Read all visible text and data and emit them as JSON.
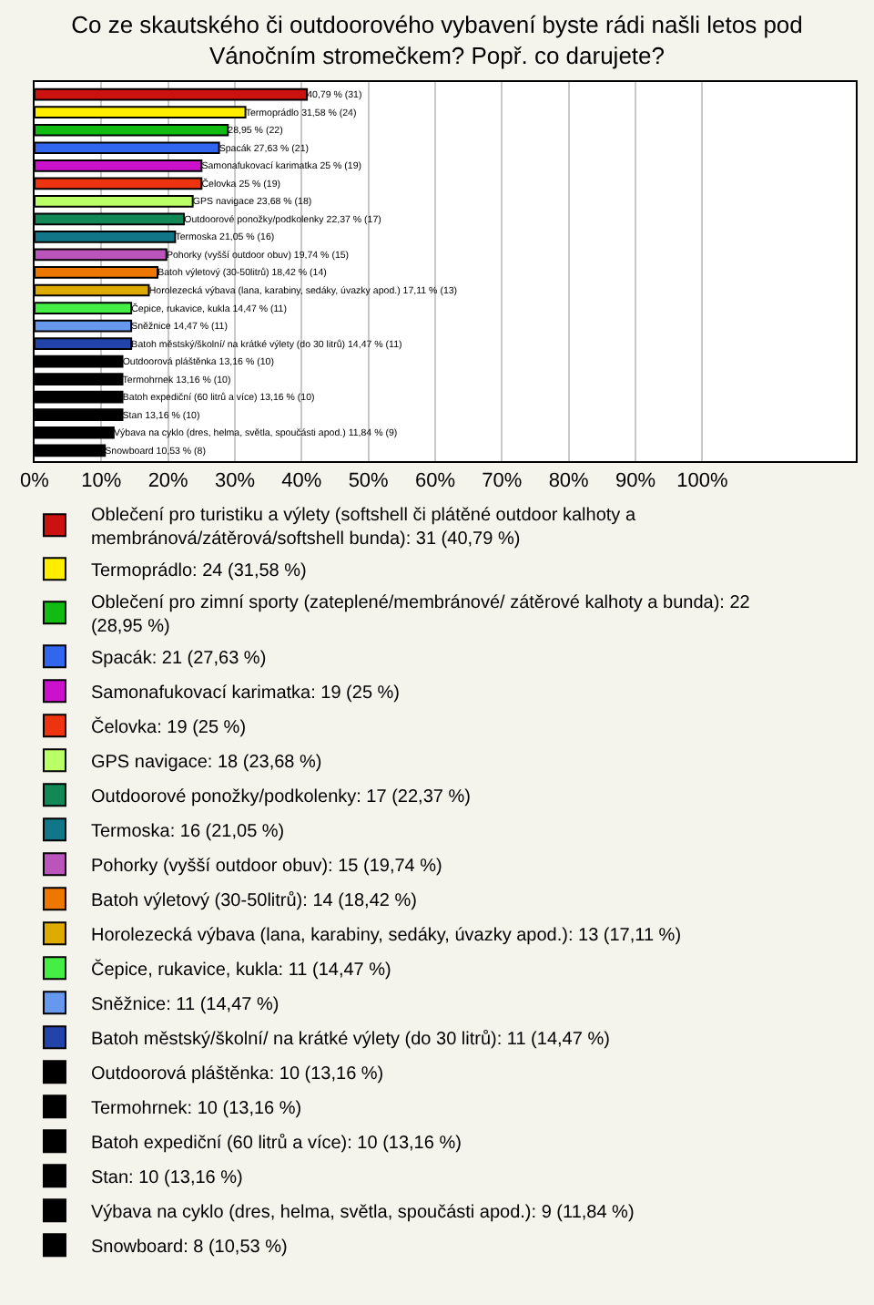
{
  "chart_data": {
    "type": "bar",
    "orientation": "horizontal",
    "stacked": true,
    "title": "Co ze skautského či outdoorového vybavení byste rádi našli letos pod Vánočním stromečkem? Popř. co darujete?",
    "categories": [
      null,
      null,
      null,
      null,
      null,
      null,
      null,
      null,
      null,
      null,
      null,
      null,
      null,
      null,
      null,
      null,
      null,
      null,
      null,
      null,
      null
    ],
    "series": [
      {
        "name": "Oblečení pro turistiku a výlety (softshell či plátěné outdoor kalhoty a membránová/zátěrová/softshell bunda): 31 (40,79 %)",
        "color": "#cc1111",
        "values": [
          40.79,
          null,
          null,
          null,
          null,
          null,
          null,
          null,
          null,
          null,
          null,
          null,
          null,
          null,
          null,
          null,
          null,
          null,
          null,
          null,
          null
        ],
        "value_labels": [
          "40,79 % (31)",
          null,
          null,
          null,
          null,
          null,
          null,
          null,
          null,
          null,
          null,
          null,
          null,
          null,
          null,
          null,
          null,
          null,
          null,
          null,
          null
        ]
      },
      {
        "name": "Termoprádlo: 24 (31,58 %)",
        "color": "#ffee00",
        "values": [
          null,
          31.58,
          null,
          null,
          null,
          null,
          null,
          null,
          null,
          null,
          null,
          null,
          null,
          null,
          null,
          null,
          null,
          null,
          null,
          null,
          null
        ],
        "value_labels": [
          null,
          "Termoprádlo 31,58 % (24)",
          null,
          null,
          null,
          null,
          null,
          null,
          null,
          null,
          null,
          null,
          null,
          null,
          null,
          null,
          null,
          null,
          null,
          null,
          null
        ]
      },
      {
        "name": "Oblečení pro zimní sporty (zateplené/membránové/ zátěrové kalhoty a bunda): 22 (28,95 %)",
        "color": "#11bb11",
        "values": [
          null,
          null,
          28.95,
          null,
          null,
          null,
          null,
          null,
          null,
          null,
          null,
          null,
          null,
          null,
          null,
          null,
          null,
          null,
          null,
          null,
          null
        ],
        "value_labels": [
          null,
          null,
          "28,95 % (22)",
          null,
          null,
          null,
          null,
          null,
          null,
          null,
          null,
          null,
          null,
          null,
          null,
          null,
          null,
          null,
          null,
          null,
          null
        ]
      },
      {
        "name": "Spacák: 21 (27,63 %)",
        "color": "#3366ee",
        "values": [
          null,
          null,
          null,
          27.63,
          null,
          null,
          null,
          null,
          null,
          null,
          null,
          null,
          null,
          null,
          null,
          null,
          null,
          null,
          null,
          null,
          null
        ],
        "value_labels": [
          null,
          null,
          null,
          "Spacák 27,63 % (21)",
          null,
          null,
          null,
          null,
          null,
          null,
          null,
          null,
          null,
          null,
          null,
          null,
          null,
          null,
          null,
          null,
          null
        ]
      },
      {
        "name": "Samonafukovací karimatka: 19 (25 %)",
        "color": "#cc11cc",
        "values": [
          null,
          null,
          null,
          null,
          25,
          null,
          null,
          null,
          null,
          null,
          null,
          null,
          null,
          null,
          null,
          null,
          null,
          null,
          null,
          null,
          null
        ],
        "value_labels": [
          null,
          null,
          null,
          null,
          "Samonafukovací karimatka 25 % (19)",
          null,
          null,
          null,
          null,
          null,
          null,
          null,
          null,
          null,
          null,
          null,
          null,
          null,
          null,
          null,
          null
        ]
      },
      {
        "name": "Čelovka: 19 (25 %)",
        "color": "#ee3311",
        "values": [
          null,
          null,
          null,
          null,
          null,
          25,
          null,
          null,
          null,
          null,
          null,
          null,
          null,
          null,
          null,
          null,
          null,
          null,
          null,
          null,
          null
        ],
        "value_labels": [
          null,
          null,
          null,
          null,
          null,
          "Čelovka 25 % (19)",
          null,
          null,
          null,
          null,
          null,
          null,
          null,
          null,
          null,
          null,
          null,
          null,
          null,
          null,
          null
        ]
      },
      {
        "name": "GPS navigace: 18 (23,68 %)",
        "color": "#bbff66",
        "values": [
          null,
          null,
          null,
          null,
          null,
          null,
          23.68,
          null,
          null,
          null,
          null,
          null,
          null,
          null,
          null,
          null,
          null,
          null,
          null,
          null,
          null
        ],
        "value_labels": [
          null,
          null,
          null,
          null,
          null,
          null,
          "GPS navigace 23,68 % (18)",
          null,
          null,
          null,
          null,
          null,
          null,
          null,
          null,
          null,
          null,
          null,
          null,
          null,
          null
        ]
      },
      {
        "name": "Outdoorové ponožky/podkolenky: 17 (22,37 %)",
        "color": "#118855",
        "values": [
          null,
          null,
          null,
          null,
          null,
          null,
          null,
          22.37,
          null,
          null,
          null,
          null,
          null,
          null,
          null,
          null,
          null,
          null,
          null,
          null,
          null
        ],
        "value_labels": [
          null,
          null,
          null,
          null,
          null,
          null,
          null,
          "Outdoorové ponožky/podkolenky 22,37 % (17)",
          null,
          null,
          null,
          null,
          null,
          null,
          null,
          null,
          null,
          null,
          null,
          null,
          null
        ]
      },
      {
        "name": "Termoska: 16 (21,05 %)",
        "color": "#117788",
        "values": [
          null,
          null,
          null,
          null,
          null,
          null,
          null,
          null,
          21.05,
          null,
          null,
          null,
          null,
          null,
          null,
          null,
          null,
          null,
          null,
          null,
          null
        ],
        "value_labels": [
          null,
          null,
          null,
          null,
          null,
          null,
          null,
          null,
          "Termoska 21,05 % (16)",
          null,
          null,
          null,
          null,
          null,
          null,
          null,
          null,
          null,
          null,
          null,
          null
        ]
      },
      {
        "name": "Pohorky (vyšší outdoor obuv): 15 (19,74 %)",
        "color": "#bb55bb",
        "values": [
          null,
          null,
          null,
          null,
          null,
          null,
          null,
          null,
          null,
          19.74,
          null,
          null,
          null,
          null,
          null,
          null,
          null,
          null,
          null,
          null,
          null
        ],
        "value_labels": [
          null,
          null,
          null,
          null,
          null,
          null,
          null,
          null,
          null,
          "Pohorky (vyšší outdoor obuv) 19,74 % (15)",
          null,
          null,
          null,
          null,
          null,
          null,
          null,
          null,
          null,
          null,
          null
        ]
      },
      {
        "name": "Batoh výletový (30-50litrů): 14 (18,42 %)",
        "color": "#ee7700",
        "values": [
          null,
          null,
          null,
          null,
          null,
          null,
          null,
          null,
          null,
          null,
          18.42,
          null,
          null,
          null,
          null,
          null,
          null,
          null,
          null,
          null,
          null
        ],
        "value_labels": [
          null,
          null,
          null,
          null,
          null,
          null,
          null,
          null,
          null,
          null,
          "Batoh výletový (30-50litrů) 18,42 % (14)",
          null,
          null,
          null,
          null,
          null,
          null,
          null,
          null,
          null,
          null
        ]
      },
      {
        "name": "Horolezecká výbava (lana, karabiny, sedáky, úvazky apod.): 13 (17,11 %)",
        "color": "#ddaa00",
        "values": [
          null,
          null,
          null,
          null,
          null,
          null,
          null,
          null,
          null,
          null,
          null,
          17.11,
          null,
          null,
          null,
          null,
          null,
          null,
          null,
          null,
          null
        ],
        "value_labels": [
          null,
          null,
          null,
          null,
          null,
          null,
          null,
          null,
          null,
          null,
          null,
          "Horolezecká výbava (lana, karabiny, sedáky, úvazky apod.) 17,11 % (13)",
          null,
          null,
          null,
          null,
          null,
          null,
          null,
          null,
          null
        ]
      },
      {
        "name": "Čepice, rukavice, kukla: 11 (14,47 %)",
        "color": "#44ee44",
        "values": [
          null,
          null,
          null,
          null,
          null,
          null,
          null,
          null,
          null,
          null,
          null,
          null,
          14.47,
          null,
          null,
          null,
          null,
          null,
          null,
          null,
          null
        ],
        "value_labels": [
          null,
          null,
          null,
          null,
          null,
          null,
          null,
          null,
          null,
          null,
          null,
          null,
          "Čepice, rukavice, kukla 14,47 % (11)",
          null,
          null,
          null,
          null,
          null,
          null,
          null,
          null
        ]
      },
      {
        "name": "Sněžnice: 11 (14,47 %)",
        "color": "#6699ee",
        "values": [
          null,
          null,
          null,
          null,
          null,
          null,
          null,
          null,
          null,
          null,
          null,
          null,
          null,
          14.47,
          null,
          null,
          null,
          null,
          null,
          null,
          null
        ],
        "value_labels": [
          null,
          null,
          null,
          null,
          null,
          null,
          null,
          null,
          null,
          null,
          null,
          null,
          null,
          "Sněžnice 14,47 % (11)",
          null,
          null,
          null,
          null,
          null,
          null,
          null
        ]
      },
      {
        "name": "Batoh městský/školní/ na krátké výlety (do 30 litrů): 11 (14,47 %)",
        "color": "#2244aa",
        "values": [
          null,
          null,
          null,
          null,
          null,
          null,
          null,
          null,
          null,
          null,
          null,
          null,
          null,
          null,
          14.47,
          null,
          null,
          null,
          null,
          null,
          null
        ],
        "value_labels": [
          null,
          null,
          null,
          null,
          null,
          null,
          null,
          null,
          null,
          null,
          null,
          null,
          null,
          null,
          "Batoh městský/školní/ na krátké výlety (do 30 litrů) 14,47 % (11)",
          null,
          null,
          null,
          null,
          null,
          null
        ]
      },
      {
        "name": "Outdoorová pláštěnka: 10 (13,16 %)",
        "color": "#000000",
        "values": [
          null,
          null,
          null,
          null,
          null,
          null,
          null,
          null,
          null,
          null,
          null,
          null,
          null,
          null,
          null,
          13.16,
          null,
          null,
          null,
          null,
          null
        ],
        "value_labels": [
          null,
          null,
          null,
          null,
          null,
          null,
          null,
          null,
          null,
          null,
          null,
          null,
          null,
          null,
          null,
          "Outdoorová pláštěnka 13,16 % (10)",
          null,
          null,
          null,
          null,
          null
        ]
      },
      {
        "name": "Termohrnek: 10 (13,16 %)",
        "color": "#000000",
        "values": [
          null,
          null,
          null,
          null,
          null,
          null,
          null,
          null,
          null,
          null,
          null,
          null,
          null,
          null,
          null,
          null,
          13.16,
          null,
          null,
          null,
          null
        ],
        "value_labels": [
          null,
          null,
          null,
          null,
          null,
          null,
          null,
          null,
          null,
          null,
          null,
          null,
          null,
          null,
          null,
          null,
          "Termohrnek 13,16 % (10)",
          null,
          null,
          null,
          null
        ]
      },
      {
        "name": "Batoh expediční (60 litrů a více): 10 (13,16 %)",
        "color": "#000000",
        "values": [
          null,
          null,
          null,
          null,
          null,
          null,
          null,
          null,
          null,
          null,
          null,
          null,
          null,
          null,
          null,
          null,
          null,
          13.16,
          null,
          null,
          null
        ],
        "value_labels": [
          null,
          null,
          null,
          null,
          null,
          null,
          null,
          null,
          null,
          null,
          null,
          null,
          null,
          null,
          null,
          null,
          null,
          "Batoh expediční (60 litrů a více) 13,16 % (10)",
          null,
          null,
          null
        ]
      },
      {
        "name": "Stan: 10 (13,16 %)",
        "color": "#000000",
        "values": [
          null,
          null,
          null,
          null,
          null,
          null,
          null,
          null,
          null,
          null,
          null,
          null,
          null,
          null,
          null,
          null,
          null,
          null,
          13.16,
          null,
          null
        ],
        "value_labels": [
          null,
          null,
          null,
          null,
          null,
          null,
          null,
          null,
          null,
          null,
          null,
          null,
          null,
          null,
          null,
          null,
          null,
          null,
          "Stan 13,16 % (10)",
          null,
          null
        ]
      },
      {
        "name": "Výbava na cyklo (dres, helma, světla, spoučásti apod.): 9 (11,84 %)",
        "color": "#000000",
        "values": [
          null,
          null,
          null,
          null,
          null,
          null,
          null,
          null,
          null,
          null,
          null,
          null,
          null,
          null,
          null,
          null,
          null,
          null,
          null,
          11.84,
          null
        ],
        "value_labels": [
          null,
          null,
          null,
          null,
          null,
          null,
          null,
          null,
          null,
          null,
          null,
          null,
          null,
          null,
          null,
          null,
          null,
          null,
          null,
          "Výbava na cyklo (dres, helma, světla, spoučásti apod.) 11,84 % (9)",
          null
        ]
      },
      {
        "name": "Snowboard: 8 (10,53 %)",
        "color": "#000000",
        "values": [
          null,
          null,
          null,
          null,
          null,
          null,
          null,
          null,
          null,
          null,
          null,
          null,
          null,
          null,
          null,
          null,
          null,
          null,
          null,
          null,
          10.53
        ],
        "value_labels": [
          null,
          null,
          null,
          null,
          null,
          null,
          null,
          null,
          null,
          null,
          null,
          null,
          null,
          null,
          null,
          null,
          null,
          null,
          null,
          null,
          "Snowboard 10,53 % (8)"
        ]
      }
    ],
    "xlim": [
      0,
      123
    ],
    "xticks": [
      {
        "value": 0,
        "label": "0%"
      },
      {
        "value": 10,
        "label": "10%"
      },
      {
        "value": 20,
        "label": "20%"
      },
      {
        "value": 30,
        "label": "30%"
      },
      {
        "value": 40,
        "label": "40%"
      },
      {
        "value": 50,
        "label": "50%"
      },
      {
        "value": 60,
        "label": "60%"
      },
      {
        "value": 70,
        "label": "70%"
      },
      {
        "value": 80,
        "label": "80%"
      },
      {
        "value": 90,
        "label": "90%"
      },
      {
        "value": 100,
        "label": "100%"
      }
    ],
    "grid": "x",
    "legend": "bottom",
    "tick_labels": "x"
  }
}
